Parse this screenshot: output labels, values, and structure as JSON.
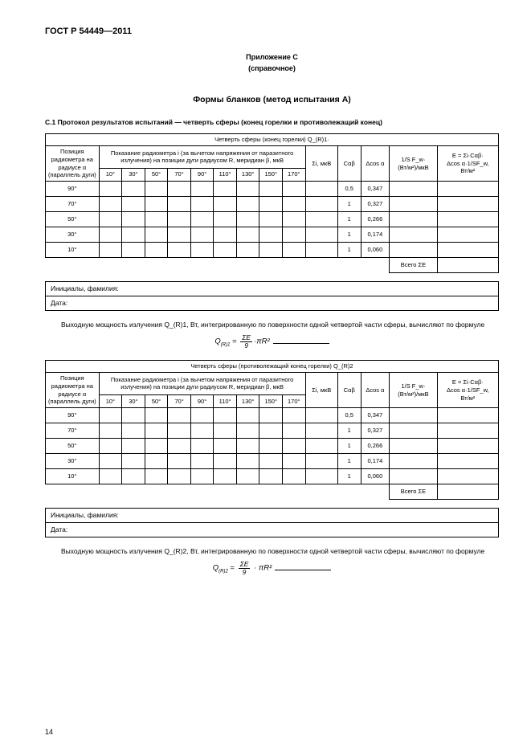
{
  "doc_code": "ГОСТ Р 54449—2011",
  "appendix_label": "Приложение С",
  "appendix_type": "(справочное)",
  "forms_title": "Формы бланков (метод испытания А)",
  "section_c1_title": "С.1  Протокол результатов испытаний  —  четверть сферы (конец горелки и противолежащий конец)",
  "table1": {
    "caption": "Четверть сферы (конец горелки) Q_(R)1·",
    "pos_header": "Позиция радиометра на радиусе α (параллель дуги)",
    "readings_header": "Показание радиометра i (за вычетом напряжения от паразитного излучения) на позиции дуги радиусом R, меридиан β, мкВ",
    "angle_cols": [
      "10°",
      "30°",
      "50°",
      "70°",
      "90°",
      "110°",
      "130°",
      "150°",
      "170°"
    ],
    "sum_header": "Σi, мкВ",
    "cab_header": "Cαβ",
    "dcos_header": "Δcos α",
    "sfw_header_l1": "1/S F_w·",
    "sfw_header_l2": "(Вт/м²)/мкВ",
    "e_header_l1": "E = Σi·Cαβ·",
    "e_header_l2": "Δcos α·1/SF_w,",
    "e_header_l3": "Вт/м²",
    "rows": [
      {
        "label": "90°",
        "cab": "0,5",
        "dcos": "0,347"
      },
      {
        "label": "70°",
        "cab": "1",
        "dcos": "0,327"
      },
      {
        "label": "50°",
        "cab": "1",
        "dcos": "0,266"
      },
      {
        "label": "30°",
        "cab": "1",
        "dcos": "0,174"
      },
      {
        "label": "10°",
        "cab": "1",
        "dcos": "0,060"
      }
    ],
    "total_label": "Всего ΣE"
  },
  "sign": {
    "initials": "Инициалы, фамилия:",
    "date": "Дата:"
  },
  "para1": "Выходную мощность излучения Q_(R)1, Вт, интегрированную по поверхности одной четвертой части сферы, вычисляют по формуле",
  "formula1_lhs": "Q_(R)1",
  "formula1_num": "ΣE",
  "formula1_den": "9",
  "formula1_rhs": "πR²",
  "table2": {
    "caption": "Четверть сферы (противолежащий конец горелки) Q_(R)2",
    "pos_header": "Позиция радиометра на радиусе α (параллель дуги)",
    "readings_header": "Показание радиометра i (за вычетом напряжения от паразитного излучения) на позиции дуги радиусом R, меридиан β, мкВ",
    "angle_cols": [
      "10°",
      "30°",
      "50°",
      "70°",
      "90°",
      "110°",
      "130°",
      "150°",
      "170°"
    ],
    "sum_header": "Σi, мкВ",
    "cab_header": "Cαβ",
    "dcos_header": "Δcos α",
    "sfw_header_l1": "1/S F_w·",
    "sfw_header_l2": "(Вт/м²)/мкВ",
    "e_header_l1": "E = Σi·Cαβ·",
    "e_header_l2": "Δcos α·1/SF_w,",
    "e_header_l3": "Вт/м²",
    "rows": [
      {
        "label": "90°",
        "cab": "0,5",
        "dcos": "0,347"
      },
      {
        "label": "70°",
        "cab": "1",
        "dcos": "0,327"
      },
      {
        "label": "50°",
        "cab": "1",
        "dcos": "0,266"
      },
      {
        "label": "30°",
        "cab": "1",
        "dcos": "0,174"
      },
      {
        "label": "10°",
        "cab": "1",
        "dcos": "0,060"
      }
    ],
    "total_label": "Всего ΣE"
  },
  "para2": "Выходную мощность излучения Q_(R)2, Вт, интегрированную по поверхности одной четвертой части сферы, вычисляют по формуле",
  "formula2_lhs": "Q_(R)2",
  "formula2_num": "ΣE",
  "formula2_den": "9",
  "formula2_rhs": "πR²",
  "page_number": "14"
}
